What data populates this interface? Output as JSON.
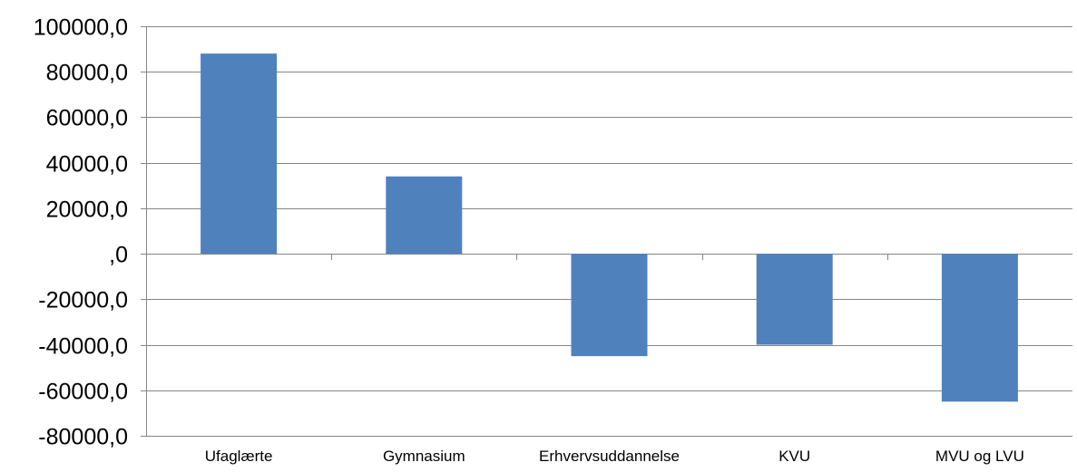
{
  "chart_data": {
    "type": "bar",
    "title": "",
    "xlabel": "",
    "ylabel": "",
    "categories": [
      "Ufaglærte",
      "Gymnasium",
      "Erhvervsuddannelse",
      "KVU",
      "MVU og LVU"
    ],
    "values": [
      88000,
      34000,
      -45000,
      -40000,
      -65000
    ],
    "ylim": [
      -80000,
      100000
    ],
    "yticks": [
      100000,
      80000,
      60000,
      40000,
      20000,
      0,
      -20000,
      -40000,
      -60000,
      -80000
    ],
    "ytick_labels": [
      "100000,0",
      "80000,0",
      "60000,0",
      "40000,0",
      "20000,0",
      ",0",
      "-20000,0",
      "-40000,0",
      "-60000,0",
      "-80000,0"
    ],
    "grid": true,
    "legend": "none",
    "bar_color": "#4F81BD",
    "grid_color": "#868686"
  }
}
